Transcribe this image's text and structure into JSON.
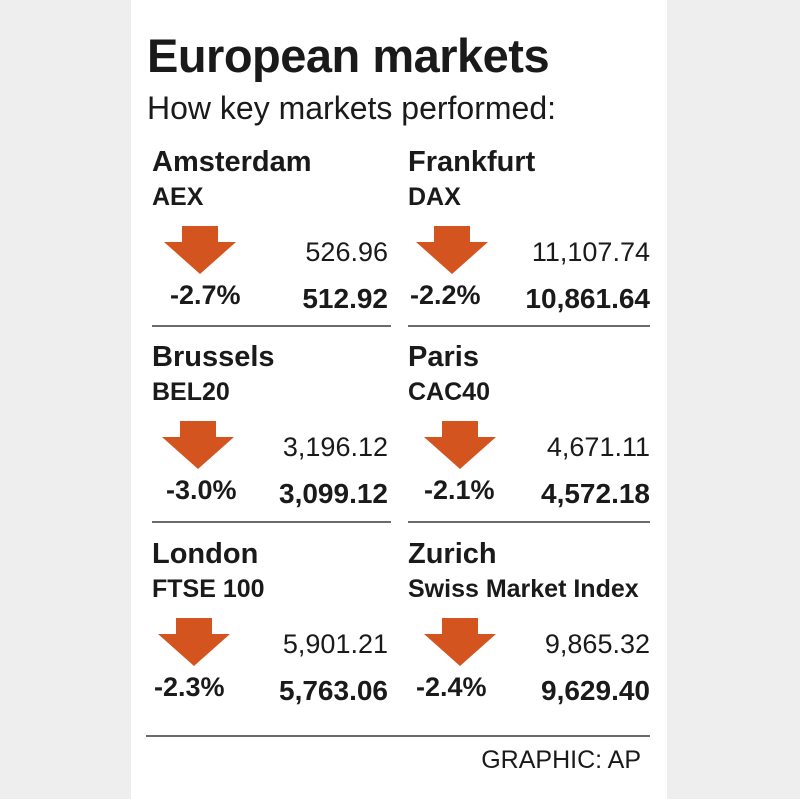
{
  "title": "European markets",
  "subtitle": "How key markets performed:",
  "colors": {
    "down_arrow": "#d4541f",
    "rule": "#6b6b6b",
    "background": "#ffffff"
  },
  "markets": [
    {
      "city": "Amsterdam",
      "index": "AEX",
      "previous": "526.96",
      "change": "-2.7%",
      "close": "512.92",
      "direction": "down-arrow-icon"
    },
    {
      "city": "Frankfurt",
      "index": "DAX",
      "previous": "11,107.74",
      "change": "-2.2%",
      "close": "10,861.64",
      "direction": "down-arrow-icon"
    },
    {
      "city": "Brussels",
      "index": "BEL20",
      "previous": "3,196.12",
      "change": "-3.0%",
      "close": "3,099.12",
      "direction": "down-arrow-icon"
    },
    {
      "city": "Paris",
      "index": "CAC40",
      "previous": "4,671.11",
      "change": "-2.1%",
      "close": "4,572.18",
      "direction": "down-arrow-icon"
    },
    {
      "city": "London",
      "index": "FTSE 100",
      "previous": "5,901.21",
      "change": "-2.3%",
      "close": "5,763.06",
      "direction": "down-arrow-icon"
    },
    {
      "city": "Zurich",
      "index": "Swiss Market Index",
      "previous": "9,865.32",
      "change": "-2.4%",
      "close": "9,629.40",
      "direction": "down-arrow-icon"
    }
  ],
  "credit": "GRAPHIC: AP"
}
